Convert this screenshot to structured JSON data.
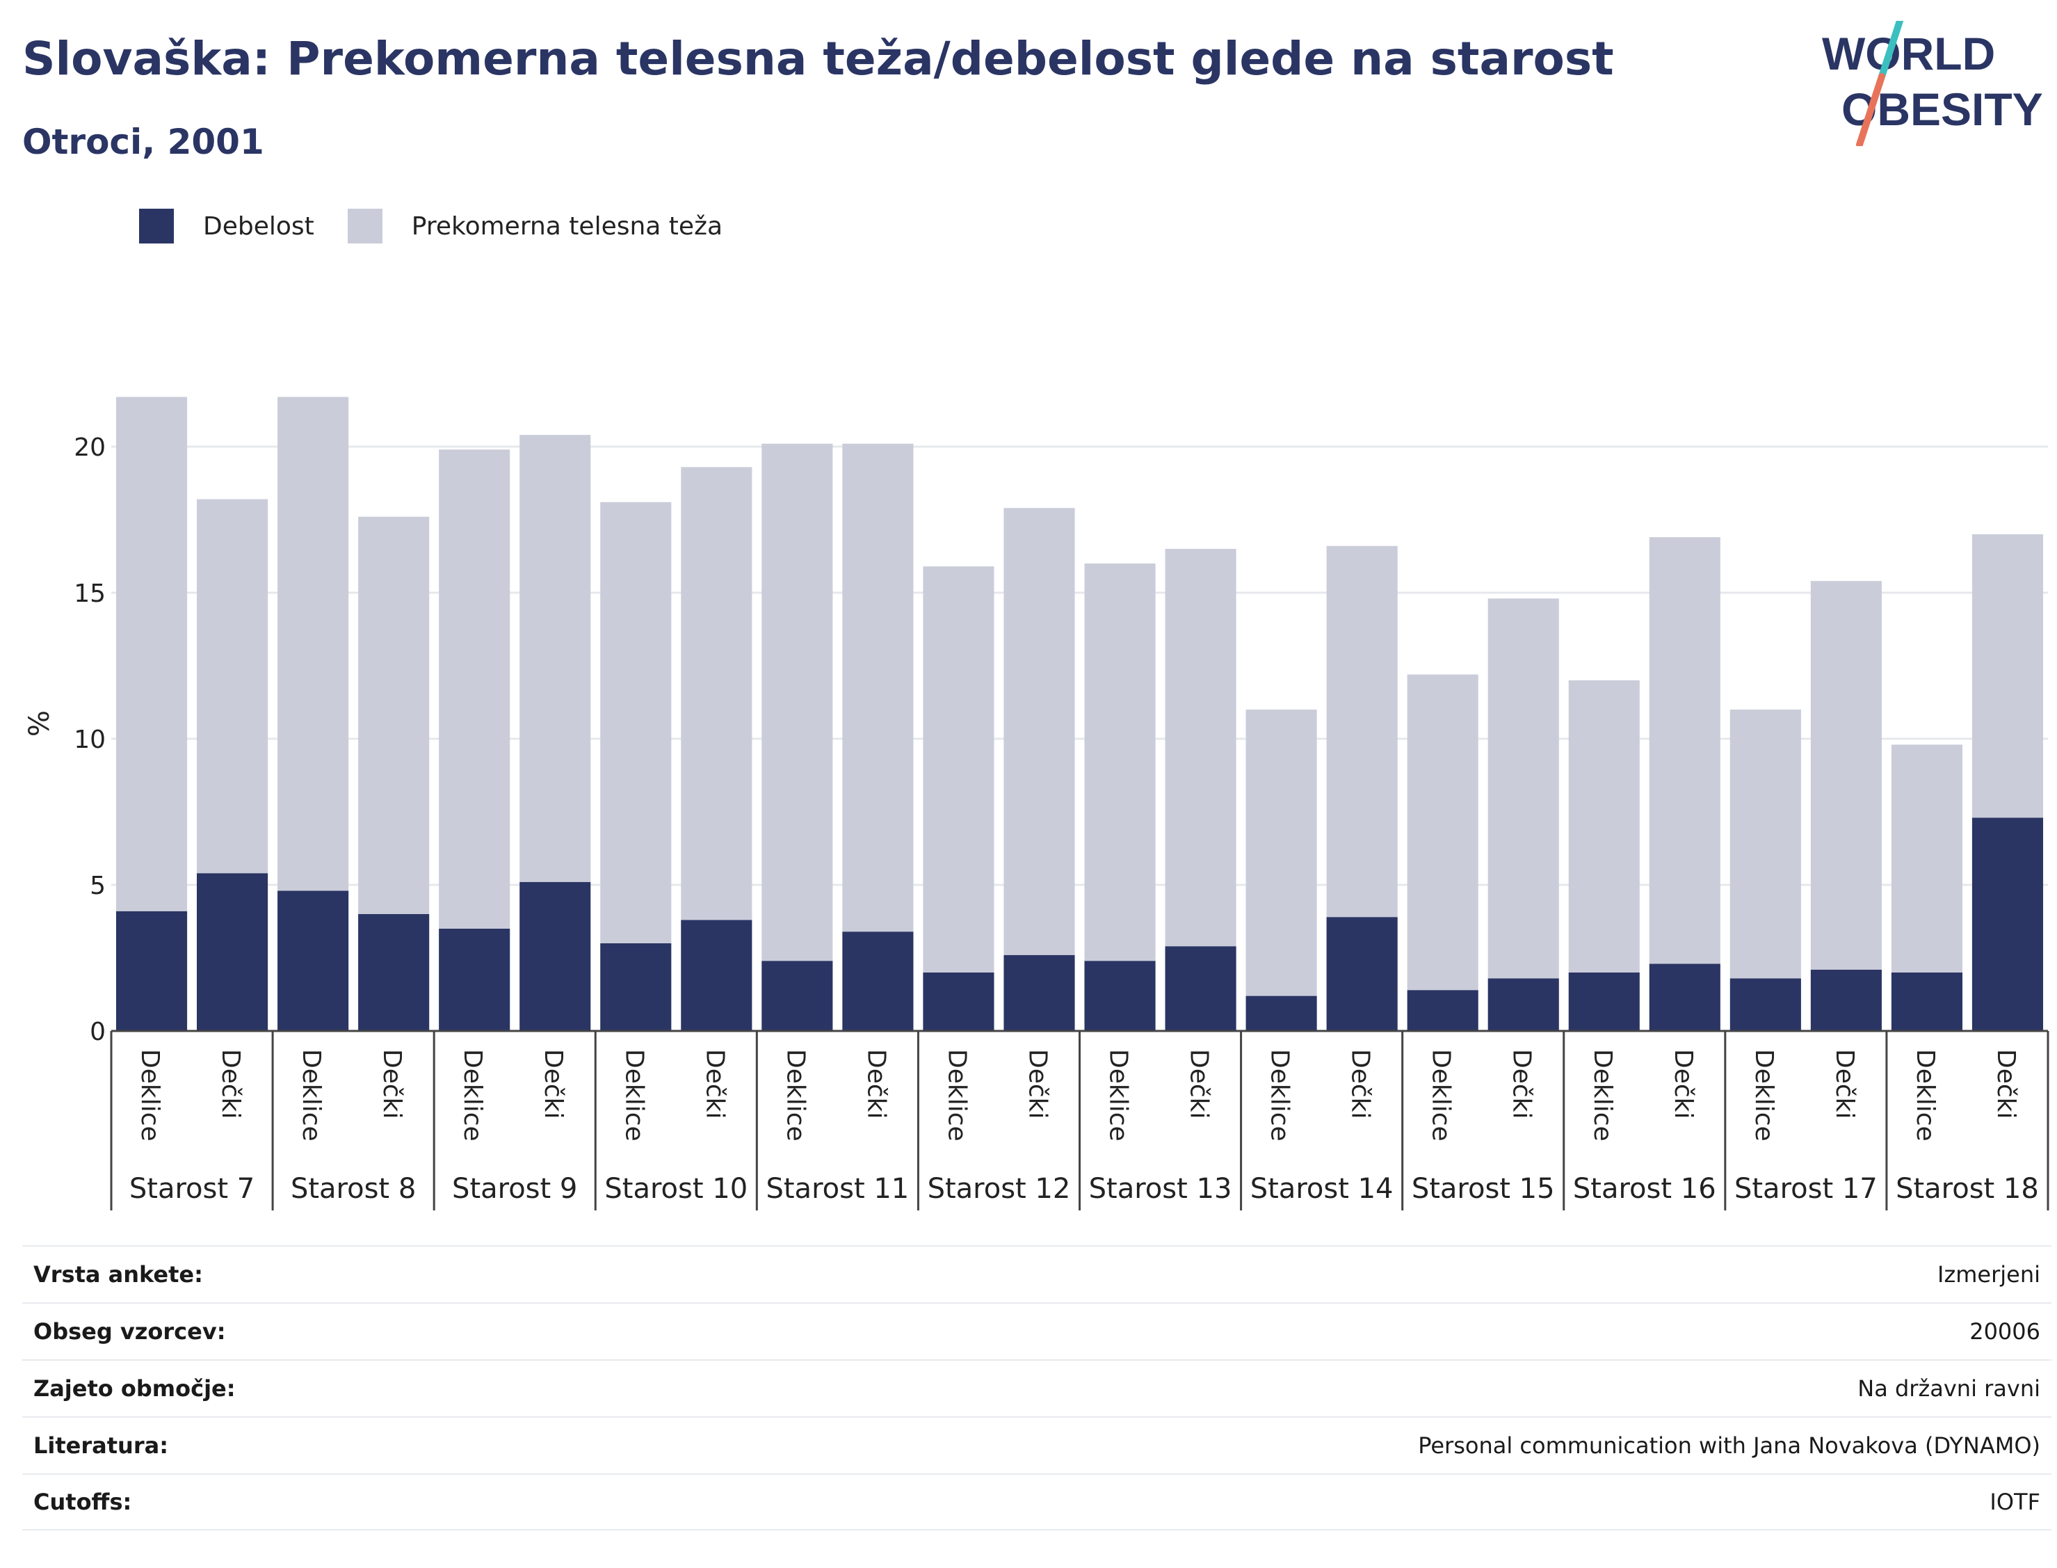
{
  "header": {
    "title": "Slovaška: Prekomerna telesna teža/debelost glede na starost",
    "subtitle": "Otroci, 2001"
  },
  "logo": {
    "line1": "WORLD",
    "line2": "OBESITY",
    "accent_colors": [
      "#3bbfbf",
      "#e8735a"
    ]
  },
  "legend": {
    "items": [
      {
        "label": "Debelost",
        "color": "#2a3564"
      },
      {
        "label": "Prekomerna telesna teža",
        "color": "#cacdd9"
      }
    ]
  },
  "chart_data": {
    "type": "bar",
    "stacked": true,
    "ylabel": "%",
    "ylim": [
      0,
      22
    ],
    "yticks": [
      0,
      5,
      10,
      15,
      20
    ],
    "grid": true,
    "legend_position": "top-left",
    "groups": [
      "Starost 7",
      "Starost 8",
      "Starost 9",
      "Starost 10",
      "Starost 11",
      "Starost 12",
      "Starost 13",
      "Starost 14",
      "Starost 15",
      "Starost 16",
      "Starost 17",
      "Starost 18"
    ],
    "subcategories": [
      "Deklice",
      "Dečki"
    ],
    "series": [
      {
        "name": "Debelost",
        "color": "#2a3564",
        "values": [
          4.1,
          5.4,
          4.8,
          4.0,
          3.5,
          5.1,
          3.0,
          3.8,
          2.4,
          3.4,
          2.0,
          2.6,
          2.4,
          2.9,
          1.2,
          3.9,
          1.4,
          1.8,
          2.0,
          2.3,
          1.8,
          2.1,
          2.0,
          7.3
        ]
      },
      {
        "name": "Prekomerna telesna teža",
        "color": "#cacdd9",
        "values": [
          17.6,
          12.8,
          16.9,
          13.6,
          16.4,
          15.3,
          15.1,
          15.5,
          17.7,
          16.7,
          13.9,
          15.3,
          13.6,
          13.6,
          9.8,
          12.7,
          10.8,
          13.0,
          10.0,
          14.6,
          9.2,
          13.3,
          7.8,
          9.7
        ]
      }
    ]
  },
  "info": {
    "rows": [
      {
        "key": "Vrsta ankete:",
        "value": "Izmerjeni"
      },
      {
        "key": "Obseg vzorcev:",
        "value": "20006"
      },
      {
        "key": "Zajeto območje:",
        "value": "Na državni ravni"
      },
      {
        "key": "Literatura:",
        "value": "Personal communication with Jana Novakova (DYNAMO)"
      },
      {
        "key": "Cutoffs:",
        "value": "IOTF"
      }
    ]
  }
}
